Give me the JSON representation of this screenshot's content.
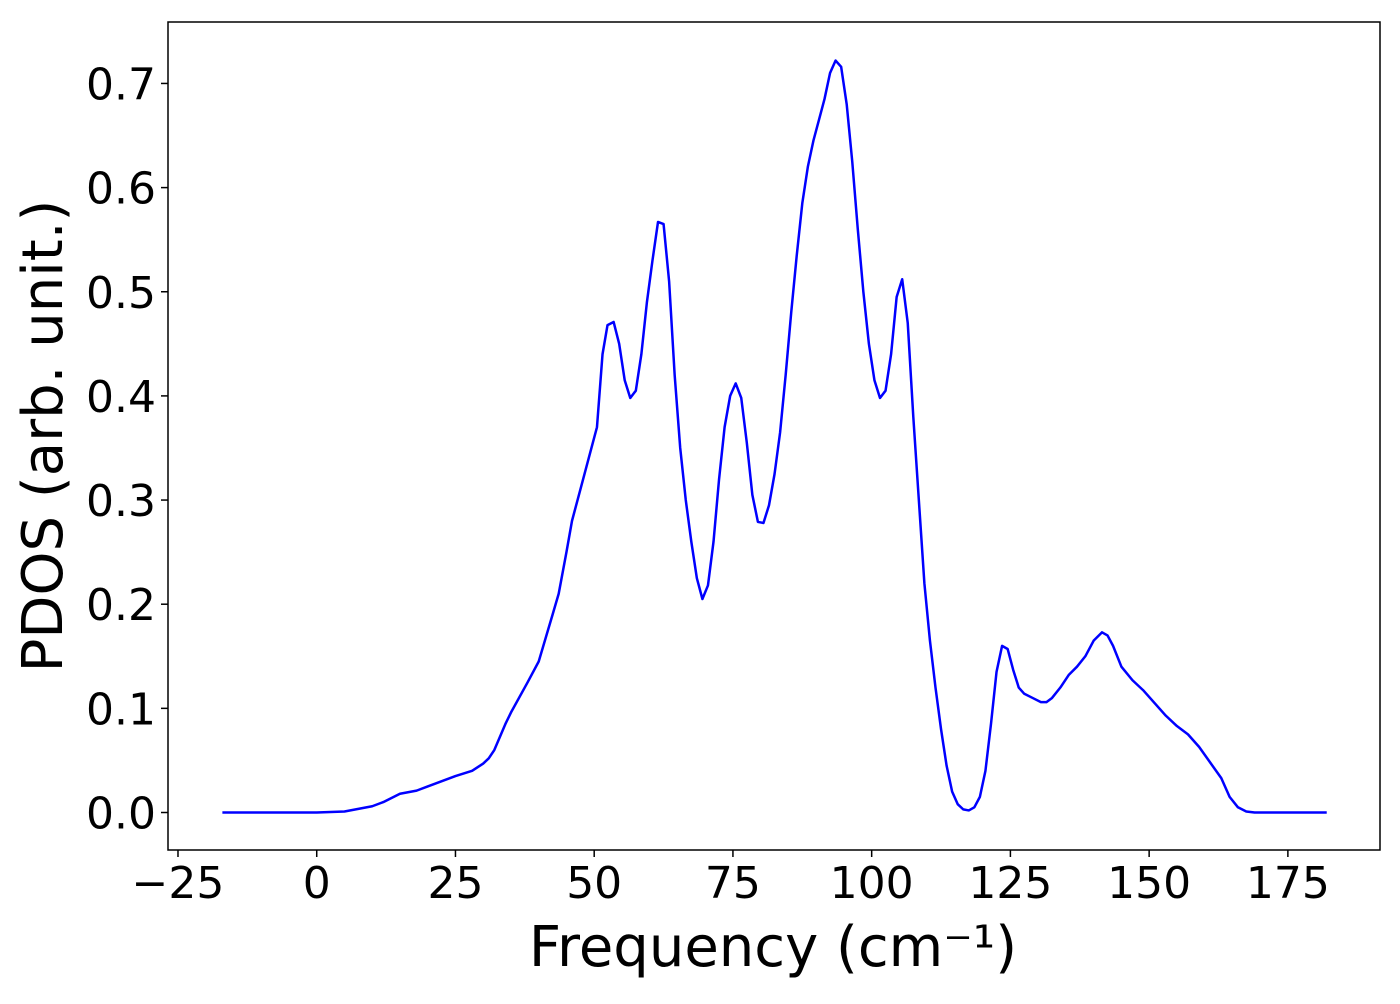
{
  "chart_data": {
    "type": "line",
    "xlabel": "Frequency (cm⁻¹)",
    "ylabel": "PDOS (arb. unit.)",
    "x": [
      -17,
      0,
      5,
      10,
      12,
      15,
      18,
      20,
      25,
      28,
      30,
      31,
      32,
      34,
      35,
      38,
      40,
      42.5,
      43.6,
      45,
      46,
      47.5,
      49,
      50.5,
      51.5,
      52.4,
      53.5,
      54.5,
      55.5,
      56.5,
      57.5,
      58.5,
      59.5,
      60.5,
      61.5,
      62.5,
      63.5,
      64.5,
      65.5,
      66.5,
      67.5,
      68.5,
      69.5,
      70.5,
      71.5,
      72.5,
      73.5,
      74.5,
      75.5,
      76.5,
      77.5,
      78.5,
      79.5,
      80.5,
      81.5,
      82.5,
      83.5,
      84.5,
      85.5,
      86.5,
      87.5,
      88.5,
      89.5,
      90.5,
      91.5,
      92.5,
      93.5,
      94.5,
      95.5,
      96.5,
      97.5,
      98.5,
      99.5,
      100.5,
      101.5,
      102.5,
      103.5,
      104.5,
      105.5,
      106.5,
      107.5,
      108.5,
      109.5,
      110.5,
      111.5,
      112.5,
      113.5,
      114.5,
      115.5,
      116.5,
      117.5,
      118.5,
      119.5,
      120.5,
      121.5,
      122.5,
      123.5,
      124.5,
      125.5,
      126.5,
      127.5,
      129,
      130.5,
      131.5,
      132.5,
      134,
      135.5,
      137,
      138.5,
      140,
      141.5,
      142.5,
      143.5,
      145,
      147,
      149,
      151,
      153,
      155,
      157,
      159,
      161,
      163,
      164.5,
      166,
      167.5,
      169,
      182
    ],
    "series": [
      {
        "color": "#0000ff",
        "values": [
          0,
          0,
          0.001,
          0.006,
          0.01,
          0.018,
          0.021,
          0.025,
          0.035,
          0.04,
          0.047,
          0.052,
          0.06,
          0.085,
          0.096,
          0.125,
          0.145,
          0.19,
          0.21,
          0.25,
          0.28,
          0.31,
          0.34,
          0.37,
          0.44,
          0.468,
          0.471,
          0.45,
          0.415,
          0.398,
          0.405,
          0.44,
          0.49,
          0.53,
          0.567,
          0.565,
          0.51,
          0.42,
          0.35,
          0.3,
          0.26,
          0.225,
          0.205,
          0.218,
          0.26,
          0.32,
          0.37,
          0.4,
          0.412,
          0.398,
          0.355,
          0.305,
          0.279,
          0.278,
          0.295,
          0.325,
          0.365,
          0.42,
          0.48,
          0.535,
          0.585,
          0.62,
          0.645,
          0.665,
          0.685,
          0.71,
          0.722,
          0.716,
          0.68,
          0.625,
          0.56,
          0.5,
          0.45,
          0.415,
          0.398,
          0.405,
          0.44,
          0.495,
          0.512,
          0.47,
          0.38,
          0.3,
          0.22,
          0.165,
          0.12,
          0.08,
          0.045,
          0.02,
          0.008,
          0.003,
          0.002,
          0.005,
          0.015,
          0.04,
          0.085,
          0.135,
          0.16,
          0.157,
          0.137,
          0.12,
          0.114,
          0.11,
          0.106,
          0.106,
          0.11,
          0.12,
          0.132,
          0.14,
          0.15,
          0.165,
          0.173,
          0.17,
          0.16,
          0.14,
          0.127,
          0.117,
          0.105,
          0.093,
          0.083,
          0.075,
          0.063,
          0.048,
          0.033,
          0.015,
          0.005,
          0.001,
          0,
          0
        ]
      }
    ],
    "xlim": [
      -26.8,
      191.6
    ],
    "ylim": [
      -0.036,
      0.759
    ],
    "xticks": [
      {
        "value": -25,
        "label": "−25"
      },
      0,
      25,
      50,
      75,
      100,
      125,
      150,
      175
    ],
    "yticks": [
      {
        "value": 0,
        "label": "0.0"
      },
      0.1,
      0.2,
      0.3,
      0.4,
      0.5,
      0.6,
      0.7
    ],
    "grid": false
  }
}
